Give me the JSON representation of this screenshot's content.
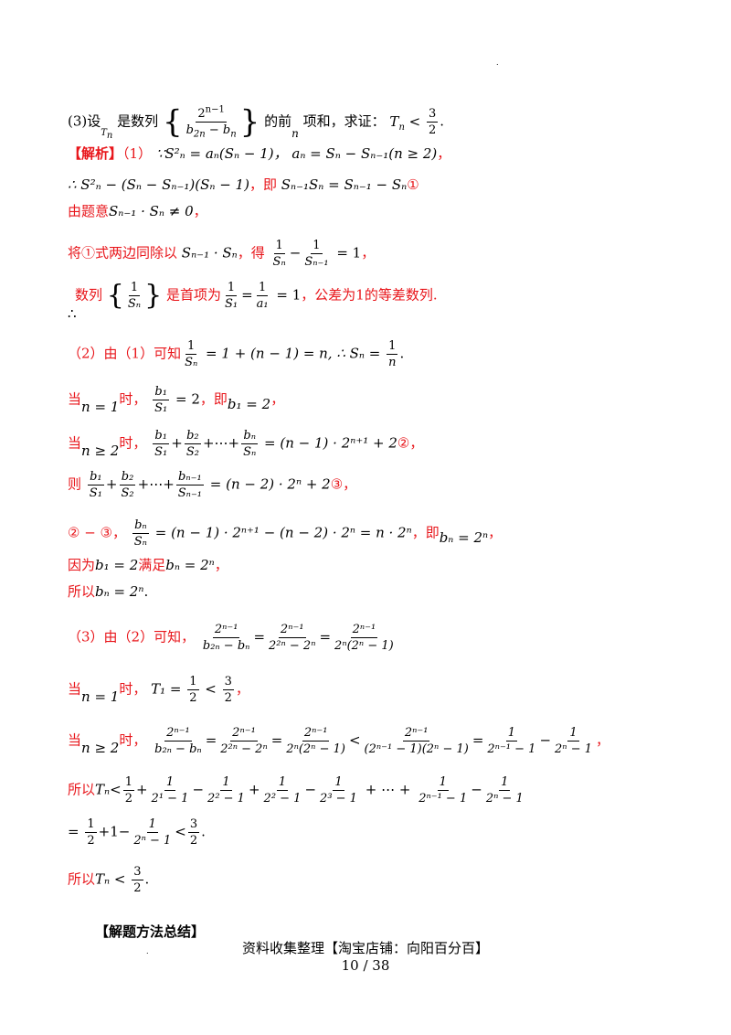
{
  "problem3": {
    "part_label": "(3)设",
    "var_T": "T",
    "var_T_sub": "n",
    "is_sequence": "是数列",
    "numerator": "2",
    "numerator_sup": "n−1",
    "denominator": "b",
    "den_sub1": "2n",
    "den_minus": " − b",
    "den_sub2": "n",
    "front_of": "的前",
    "n_var": "n",
    "sum_prove": "项和，求证：",
    "ineq": "T",
    "ineq_sub": "n",
    "ineq_lt": " < ",
    "three": "3",
    "two": "2",
    "period": "."
  },
  "solution": {
    "tag": "【解析】",
    "s1_label": "（1）",
    "s1_formula": "∵S",
    "s1_text_a": "²ₙ = aₙ(Sₙ − 1)，",
    "s1_text_b": "aₙ = Sₙ − Sₙ₋₁(n ≥ 2)",
    "s1_comma": "，",
    "s2_formula": "∴ S²ₙ − (Sₙ − Sₙ₋₁)(Sₙ − 1)",
    "s2_text": "，即",
    "s2_formula2": "Sₙ₋₁Sₙ = Sₙ₋₁ − Sₙ",
    "circle1": "①",
    "s3_text": "由题意",
    "s3_formula": "Sₙ₋₁ · Sₙ ≠ 0",
    "s3_comma": "，",
    "s4_text_a": "将①式两边同除以",
    "s4_formula": "Sₙ₋₁ · Sₙ",
    "s4_text_b": "，得",
    "s4_eq": " = 1",
    "s4_comma": "，",
    "one": "1",
    "s_n": "Sₙ",
    "s_n1": "Sₙ₋₁",
    "s5_text_a": "数列",
    "s5_text_b": "是首项为",
    "s5_s1": "S₁",
    "s5_a1": "a₁",
    "s5_eq_end": " = 1",
    "s5_text_c": "，公差为1的等差数列.",
    "therefore": "∴",
    "p2_label": "（2）由（1）可知",
    "p2_formula": " = 1 + (n − 1) = n, ∴ Sₙ = ",
    "p2_n": "n",
    "p2_period": ".",
    "case1_a": "当",
    "case1_cond": "n = 1",
    "case1_b": "时，",
    "case1_b1": "b₁",
    "case1_eq": " = 2",
    "case1_c": "，即",
    "case1_res": "b₁ = 2",
    "case1_comma": "，",
    "case2_a": "当",
    "case2_cond": "n ≥ 2",
    "case2_b": "时，",
    "case2_terms": [
      "b₁",
      "S₁",
      "b₂",
      "S₂",
      "bₙ",
      "Sₙ"
    ],
    "case2_rhs": " = (n − 1) · 2ⁿ⁺¹ + 2",
    "circle2": "②",
    "case2_comma": "，",
    "then": "则",
    "case3_terms": [
      "b₁",
      "S₁",
      "b₂",
      "S₂",
      "bₙ₋₁",
      "Sₙ₋₁"
    ],
    "case3_rhs": " = (n − 2) · 2ⁿ + 2",
    "circle3": "③",
    "case3_comma": "，",
    "diff_label": "② − ③，",
    "diff_frac_n": "bₙ",
    "diff_frac_d": "Sₙ",
    "diff_rhs": " = (n − 1) · 2ⁿ⁺¹ − (n − 2) · 2ⁿ = n · 2ⁿ",
    "diff_c": "，即",
    "diff_res": "bₙ = 2ⁿ",
    "diff_comma": "，",
    "because": "因为",
    "because_f": "b₁ = 2",
    "satisfy": "满足",
    "satisfy_f": "bₙ = 2ⁿ",
    "satisfy_comma": "，",
    "so": "所以",
    "so_f": "bₙ = 2ⁿ",
    "so_period": ".",
    "p3_label": "（3）由（2）可知，",
    "p3_f1n": "2ⁿ⁻¹",
    "p3_f1d": "b₂ₙ − bₙ",
    "p3_f2d": "2²ⁿ − 2ⁿ",
    "p3_f3d": "2ⁿ(2ⁿ − 1)",
    "c1_a": "当",
    "c1_cond": "n = 1",
    "c1_b": "时，",
    "c1_f": "T₁ = ",
    "c1_half": "1",
    "c1_lt": " < ",
    "c1_comma": "，",
    "c2_a": "当",
    "c2_cond": "n ≥ 2",
    "c2_b": "时，",
    "c2_f4d": "(2ⁿ⁻¹ − 1)(2ⁿ − 1)",
    "c2_f5d": "2ⁿ⁻¹ − 1",
    "c2_f6d": "2ⁿ − 1",
    "c2_comma": "，",
    "sum_label": "所以",
    "sum_T": "Tₙ",
    "sum_terms": [
      "2¹ − 1",
      "2² − 1",
      "2³ − 1",
      "2ⁿ⁻¹ − 1",
      "2ⁿ − 1"
    ],
    "dots": " + ⋯ + ",
    "eq_line": "= ",
    "eq_f": "2ⁿ − 1",
    "eq_end": ".",
    "final_label": "所以",
    "final_T": "Tₙ < ",
    "final_end": "."
  },
  "summary_title": "【解题方法总结】",
  "footer_line1": "资料收集整理【淘宝店铺：向阳百分百】",
  "footer_line2": "10 / 38"
}
